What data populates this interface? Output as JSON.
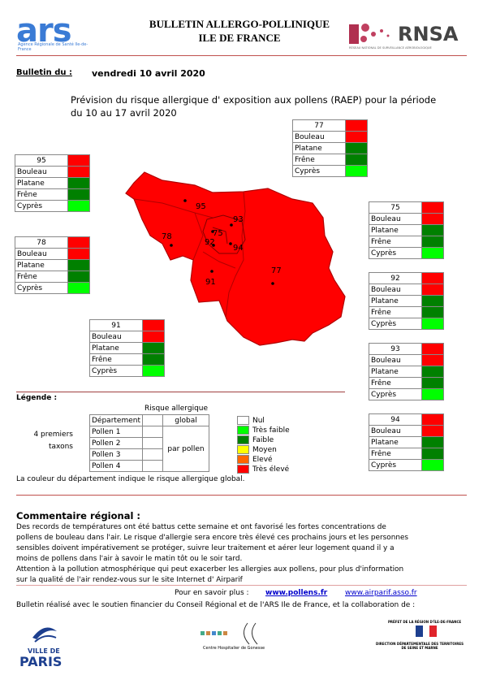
{
  "header": {
    "ars_logo": "ars",
    "ars_subtitle": "Agence Régionale de Santé Ile-de-France",
    "title_line1": "BULLETIN ALLERGO-POLLINIQUE",
    "title_line2": "ILE DE FRANCE",
    "rnsa_logo": "RNSA",
    "rnsa_subtitle": "RÉSEAU NATIONAL DE SURVEILLANCE AÉROBIOLOGIQUE"
  },
  "bulletin": {
    "label": "Bulletin du :",
    "date": "vendredi 10 avril 2020"
  },
  "intro": {
    "line1": "Prévision du risque allergique d' exposition aux pollens (RAEP) pour la période",
    "line2": "du 10 au 17 avril 2020"
  },
  "departments": [
    {
      "code": "77",
      "global_color": "#ff0000",
      "pollens": [
        {
          "name": "Bouleau",
          "color": "#ff0000"
        },
        {
          "name": "Platane",
          "color": "#008000"
        },
        {
          "name": "Frêne",
          "color": "#008000"
        },
        {
          "name": "Cyprès",
          "color": "#00ff00"
        }
      ]
    },
    {
      "code": "95",
      "global_color": "#ff0000",
      "pollens": [
        {
          "name": "Bouleau",
          "color": "#ff0000"
        },
        {
          "name": "Platane",
          "color": "#008000"
        },
        {
          "name": "Frêne",
          "color": "#008000"
        },
        {
          "name": "Cyprès",
          "color": "#00ff00"
        }
      ]
    },
    {
      "code": "78",
      "global_color": "#ff0000",
      "pollens": [
        {
          "name": "Bouleau",
          "color": "#ff0000"
        },
        {
          "name": "Platane",
          "color": "#008000"
        },
        {
          "name": "Frêne",
          "color": "#008000"
        },
        {
          "name": "Cyprès",
          "color": "#00ff00"
        }
      ]
    },
    {
      "code": "91",
      "global_color": "#ff0000",
      "pollens": [
        {
          "name": "Bouleau",
          "color": "#ff0000"
        },
        {
          "name": "Platane",
          "color": "#008000"
        },
        {
          "name": "Frêne",
          "color": "#008000"
        },
        {
          "name": "Cyprès",
          "color": "#00ff00"
        }
      ]
    },
    {
      "code": "75",
      "global_color": "#ff0000",
      "pollens": [
        {
          "name": "Bouleau",
          "color": "#ff0000"
        },
        {
          "name": "Platane",
          "color": "#008000"
        },
        {
          "name": "Frêne",
          "color": "#008000"
        },
        {
          "name": "Cyprès",
          "color": "#00ff00"
        }
      ]
    },
    {
      "code": "92",
      "global_color": "#ff0000",
      "pollens": [
        {
          "name": "Bouleau",
          "color": "#ff0000"
        },
        {
          "name": "Platane",
          "color": "#008000"
        },
        {
          "name": "Frêne",
          "color": "#008000"
        },
        {
          "name": "Cyprès",
          "color": "#00ff00"
        }
      ]
    },
    {
      "code": "93",
      "global_color": "#ff0000",
      "pollens": [
        {
          "name": "Bouleau",
          "color": "#ff0000"
        },
        {
          "name": "Platane",
          "color": "#008000"
        },
        {
          "name": "Frêne",
          "color": "#008000"
        },
        {
          "name": "Cyprès",
          "color": "#00ff00"
        }
      ]
    },
    {
      "code": "94",
      "global_color": "#ff0000",
      "pollens": [
        {
          "name": "Bouleau",
          "color": "#ff0000"
        },
        {
          "name": "Platane",
          "color": "#008000"
        },
        {
          "name": "Frêne",
          "color": "#008000"
        },
        {
          "name": "Cyprès",
          "color": "#00ff00"
        }
      ]
    }
  ],
  "legend": {
    "title": "Légende :",
    "table_title": "Risque allergique",
    "col_department": "Département",
    "col_global": "global",
    "taxa_note": "4 premiers taxons",
    "rows": [
      "Pollen 1",
      "Pollen 2",
      "Pollen 3",
      "Pollen 4"
    ],
    "per_pollen": "par pollen",
    "levels": [
      {
        "label": "Nul",
        "color": "#ffffff"
      },
      {
        "label": "Très faible",
        "color": "#00ff00"
      },
      {
        "label": "Faible",
        "color": "#008000"
      },
      {
        "label": "Moyen",
        "color": "#ffff00"
      },
      {
        "label": "Elevé",
        "color": "#ff6600"
      },
      {
        "label": "Très élevé",
        "color": "#ff0000"
      }
    ],
    "note": "La couleur du département indique le risque allergique global."
  },
  "comment": {
    "title": "Commentaire régional :",
    "lines": [
      "Des records de températures ont été battus cette semaine et ont favorisé les fortes concentrations de",
      "pollens de bouleau dans l'air. Le risque d'allergie sera encore très élevé ces prochains jours et les personnes",
      "sensibles doivent impérativement se protéger, suivre leur traitement et aérer leur logement quand il y a",
      "moins de pollens dans l'air à savoir le matin tôt ou le soir tard.",
      "Attention à la pollution atmosphérique qui peut exacerber les allergies aux pollens, pour plus d'information",
      "sur la qualité de l'air rendez-vous sur le site Internet d' Airparif"
    ]
  },
  "links": {
    "label": "Pour en savoir plus :",
    "pollens": "www.pollens.fr",
    "airparif": "www.airparif.asso.fr"
  },
  "funding": "Bulletin réalisé avec le soutien financier du Conseil Régional et de l'ARS Ile de France, et la collaboration de :",
  "footer": {
    "paris_line1": "VILLE DE",
    "paris_line2": "PARIS",
    "hospital": "Centre Hospitalier de Gonesse",
    "prefet": "PRÉFET DE LA RÉGION D'ÎLE-DE-FRANCE",
    "ddt": "DIRECTION DÉPARTEMENTALE DES TERRITOIRES DE SEINE ET MARNE"
  }
}
